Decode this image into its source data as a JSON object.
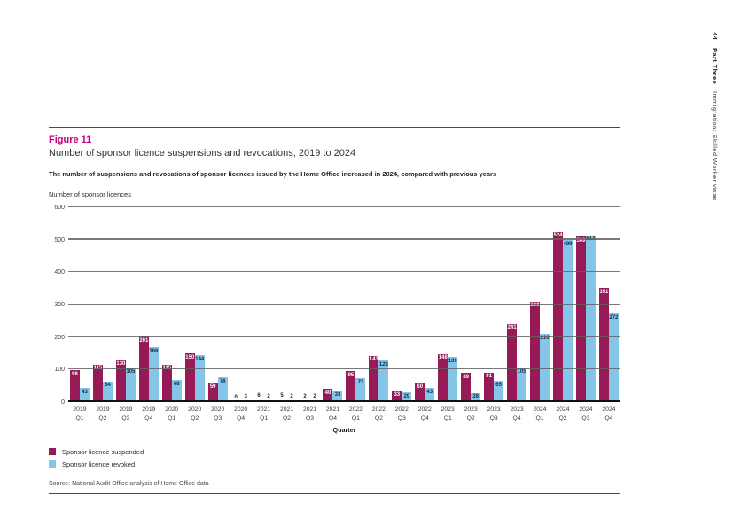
{
  "page": {
    "margin_header": {
      "page_number": "44",
      "section": "Part Three",
      "report_title": "Immigration: Skilled Worker visas"
    },
    "figure_label": "Figure 11",
    "title": "Number of sponsor licence suspensions and revocations, 2019 to 2024",
    "subtitle": "The number of suspensions and revocations of sponsor licences issued by the Home Office increased in 2024, compared with previous years",
    "source": "Source: National Audit Office analysis of Home Office data",
    "colors": {
      "accent_pink": "#C4007A",
      "rule_plum": "#8E2462",
      "suspended": "#971A56",
      "revoked": "#85C6E8",
      "label_on_revoked": "#0e2a47",
      "label_on_suspended": "#ffffff"
    }
  },
  "chart_data": {
    "type": "bar",
    "title": "Number of sponsor licence suspensions and revocations, 2019 to 2024",
    "ylabel": "Number of sponsor licences",
    "xlabel": "Quarter",
    "ylim": [
      0,
      600
    ],
    "yticks": [
      0,
      100,
      200,
      300,
      400,
      500,
      600
    ],
    "grid": true,
    "legend_position": "bottom-left",
    "categories": [
      {
        "year": "2019",
        "quarter": "Q1"
      },
      {
        "year": "2019",
        "quarter": "Q2"
      },
      {
        "year": "2019",
        "quarter": "Q3"
      },
      {
        "year": "2019",
        "quarter": "Q4"
      },
      {
        "year": "2020",
        "quarter": "Q1"
      },
      {
        "year": "2020",
        "quarter": "Q2"
      },
      {
        "year": "2020",
        "quarter": "Q3"
      },
      {
        "year": "2020",
        "quarter": "Q4"
      },
      {
        "year": "2021",
        "quarter": "Q1"
      },
      {
        "year": "2021",
        "quarter": "Q2"
      },
      {
        "year": "2021",
        "quarter": "Q3"
      },
      {
        "year": "2021",
        "quarter": "Q4"
      },
      {
        "year": "2022",
        "quarter": "Q1"
      },
      {
        "year": "2022",
        "quarter": "Q2"
      },
      {
        "year": "2022",
        "quarter": "Q3"
      },
      {
        "year": "2022",
        "quarter": "Q4"
      },
      {
        "year": "2023",
        "quarter": "Q1"
      },
      {
        "year": "2023",
        "quarter": "Q2"
      },
      {
        "year": "2023",
        "quarter": "Q3"
      },
      {
        "year": "2023",
        "quarter": "Q4"
      },
      {
        "year": "2024",
        "quarter": "Q1"
      },
      {
        "year": "2024",
        "quarter": "Q2"
      },
      {
        "year": "2024",
        "quarter": "Q3"
      },
      {
        "year": "2024",
        "quarter": "Q4"
      }
    ],
    "series": [
      {
        "name": "Sponsor licence suspended",
        "color": "#971A56",
        "label_color": "#ffffff",
        "values": [
          98,
          115,
          130,
          201,
          115,
          150,
          59,
          0,
          6,
          5,
          2,
          40,
          95,
          143,
          33,
          60,
          148,
          89,
          91,
          241,
          309,
          524,
          509,
          351
        ]
      },
      {
        "name": "Sponsor licence revoked",
        "color": "#85C6E8",
        "label_color": "#0e2a47",
        "values": [
          43,
          64,
          105,
          168,
          68,
          144,
          76,
          3,
          2,
          2,
          2,
          33,
          73,
          128,
          29,
          43,
          139,
          28,
          65,
          105,
          210,
          499,
          513,
          272
        ]
      }
    ]
  }
}
